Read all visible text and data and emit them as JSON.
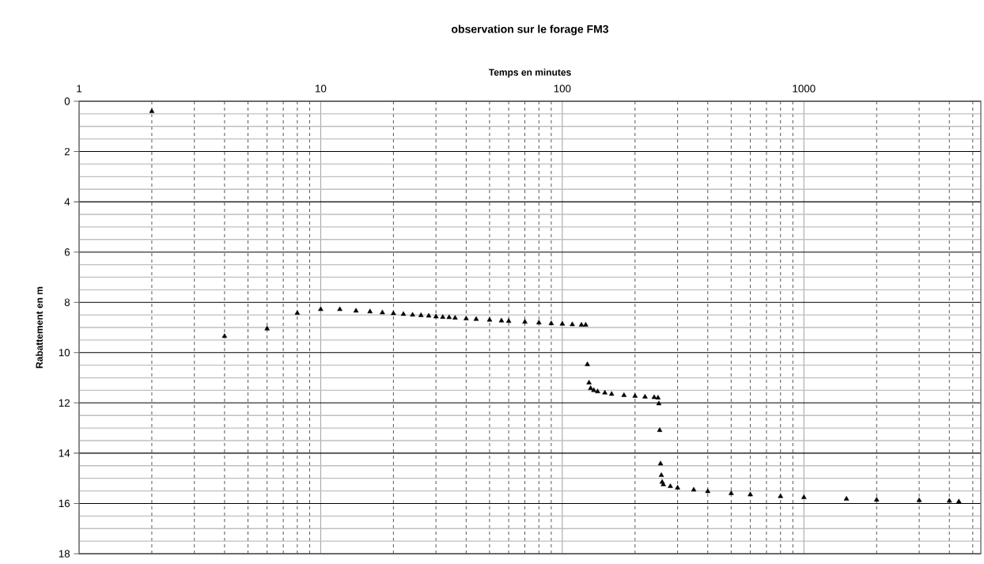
{
  "chart_data": {
    "type": "scatter",
    "title": "observation sur le forage FM3",
    "xlabel": "Temps en minutes",
    "ylabel": "Rabattement en m",
    "log": "x",
    "grid": true,
    "marker": "triangle",
    "xlim": [
      1,
      5400
    ],
    "xticks": [
      1,
      10,
      100,
      1000
    ],
    "ylim": [
      18,
      0
    ],
    "yticks": [
      0,
      2,
      4,
      6,
      8,
      10,
      12,
      14,
      16,
      18
    ],
    "series": [
      {
        "color": "#000000",
        "x": [
          2,
          4,
          6,
          8,
          10,
          12,
          14,
          16,
          18,
          20,
          22,
          24,
          26,
          28,
          30,
          32,
          34,
          36,
          40,
          44,
          50,
          56,
          60,
          70,
          80,
          90,
          100,
          110,
          120,
          125,
          127,
          129,
          131,
          135,
          140,
          150,
          160,
          180,
          200,
          220,
          240,
          249,
          251,
          253,
          255,
          257,
          259,
          262,
          280,
          300,
          350,
          400,
          500,
          600,
          800,
          1000,
          1500,
          2000,
          3000,
          4000,
          4378
        ],
        "values": [
          0.4,
          9.35,
          9.05,
          8.43,
          8.28,
          8.28,
          8.34,
          8.37,
          8.41,
          8.44,
          8.47,
          8.5,
          8.52,
          8.54,
          8.57,
          8.59,
          8.6,
          8.62,
          8.65,
          8.67,
          8.7,
          8.73,
          8.75,
          8.78,
          8.81,
          8.84,
          8.86,
          8.88,
          8.9,
          8.9,
          10.47,
          11.2,
          11.42,
          11.5,
          11.55,
          11.6,
          11.65,
          11.7,
          11.73,
          11.76,
          11.78,
          11.8,
          12.03,
          13.09,
          14.42,
          14.88,
          15.15,
          15.25,
          15.32,
          15.38,
          15.46,
          15.52,
          15.6,
          15.65,
          15.72,
          15.76,
          15.82,
          15.86,
          15.88,
          15.9,
          15.93
        ]
      }
    ]
  }
}
